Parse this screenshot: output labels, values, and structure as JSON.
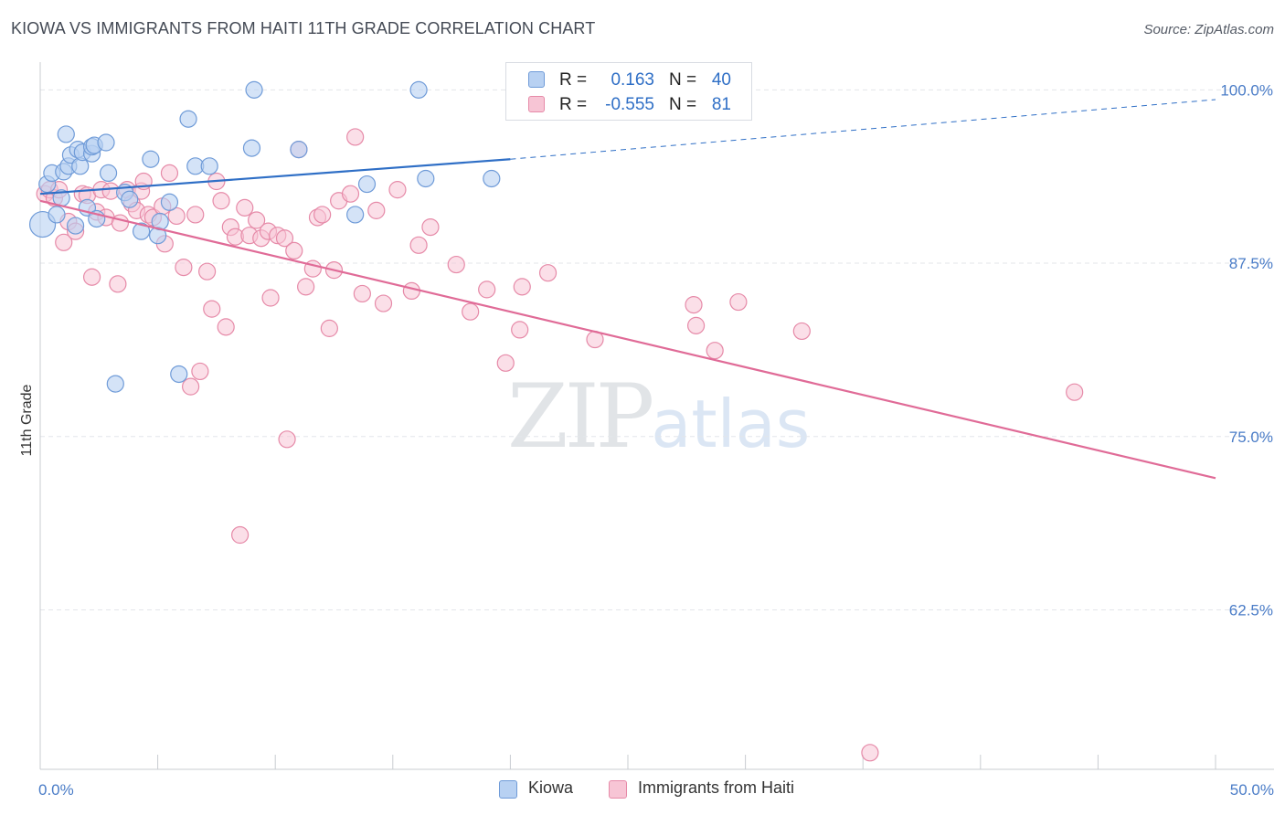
{
  "chart_data": {
    "type": "scatter",
    "title": "KIOWA VS IMMIGRANTS FROM HAITI 11TH GRADE CORRELATION CHART",
    "source": "Source: ZipAtlas.com",
    "ylabel": "11th Grade",
    "xlabel": "",
    "xlim": [
      0,
      50
    ],
    "ylim": [
      51,
      102
    ],
    "x_tick_labels": [
      "0.0%",
      "50.0%"
    ],
    "y_ticks": [
      {
        "value": 100,
        "label": "100.0%"
      },
      {
        "value": 87.5,
        "label": "87.5%"
      },
      {
        "value": 75,
        "label": "75.0%"
      },
      {
        "value": 62.5,
        "label": "62.5%"
      }
    ],
    "legend": [
      {
        "name": "Kiowa",
        "r_label": "R =",
        "r_value": "0.163",
        "n_label": "N =",
        "n_value": "40"
      },
      {
        "name": "Immigrants from Haiti",
        "r_label": "R =",
        "r_value": "-0.555",
        "n_label": "N =",
        "n_value": "81"
      }
    ],
    "colors": {
      "kiowa_fill": "#b8d1f2",
      "kiowa_stroke": "#6f9bd8",
      "kiowa_line": "#2f6fc6",
      "haiti_fill": "#f7c5d5",
      "haiti_stroke": "#e68aa8",
      "haiti_line": "#e06b97",
      "axis_text": "#4a7cc7",
      "grid": "#e3e6ea"
    },
    "series": [
      {
        "name": "Kiowa",
        "trend": {
          "x0": 0,
          "y0": 92.5,
          "x1": 20,
          "y1": 95,
          "x_ext_end": 50,
          "y_ext_end": 99.3
        },
        "points": [
          {
            "x": 0.1,
            "y": 90.3,
            "s": 14
          },
          {
            "x": 0.3,
            "y": 93.2,
            "s": 9
          },
          {
            "x": 0.5,
            "y": 94.0,
            "s": 9
          },
          {
            "x": 0.7,
            "y": 91.0,
            "s": 9
          },
          {
            "x": 0.9,
            "y": 92.2,
            "s": 9
          },
          {
            "x": 1.0,
            "y": 94.1,
            "s": 9
          },
          {
            "x": 1.1,
            "y": 96.8,
            "s": 9
          },
          {
            "x": 1.2,
            "y": 94.5,
            "s": 9
          },
          {
            "x": 1.3,
            "y": 95.3,
            "s": 9
          },
          {
            "x": 1.5,
            "y": 90.2,
            "s": 9
          },
          {
            "x": 1.6,
            "y": 95.7,
            "s": 9
          },
          {
            "x": 1.7,
            "y": 94.5,
            "s": 9
          },
          {
            "x": 1.8,
            "y": 95.5,
            "s": 9
          },
          {
            "x": 2.0,
            "y": 91.5,
            "s": 9
          },
          {
            "x": 2.2,
            "y": 95.4,
            "s": 9
          },
          {
            "x": 2.2,
            "y": 95.9,
            "s": 9
          },
          {
            "x": 2.3,
            "y": 96.0,
            "s": 9
          },
          {
            "x": 2.4,
            "y": 90.7,
            "s": 9
          },
          {
            "x": 2.8,
            "y": 96.2,
            "s": 9
          },
          {
            "x": 2.9,
            "y": 94.0,
            "s": 9
          },
          {
            "x": 3.2,
            "y": 78.8,
            "s": 9
          },
          {
            "x": 3.6,
            "y": 92.6,
            "s": 9
          },
          {
            "x": 3.8,
            "y": 92.1,
            "s": 9
          },
          {
            "x": 4.3,
            "y": 89.8,
            "s": 9
          },
          {
            "x": 4.7,
            "y": 95.0,
            "s": 9
          },
          {
            "x": 5.0,
            "y": 89.5,
            "s": 9
          },
          {
            "x": 5.1,
            "y": 90.5,
            "s": 9
          },
          {
            "x": 5.5,
            "y": 91.9,
            "s": 9
          },
          {
            "x": 5.9,
            "y": 79.5,
            "s": 9
          },
          {
            "x": 6.3,
            "y": 97.9,
            "s": 9
          },
          {
            "x": 6.6,
            "y": 94.5,
            "s": 9
          },
          {
            "x": 7.2,
            "y": 94.5,
            "s": 9
          },
          {
            "x": 9.0,
            "y": 95.8,
            "s": 9
          },
          {
            "x": 9.1,
            "y": 100.0,
            "s": 9
          },
          {
            "x": 11.0,
            "y": 95.7,
            "s": 9
          },
          {
            "x": 13.4,
            "y": 91.0,
            "s": 9
          },
          {
            "x": 13.9,
            "y": 93.2,
            "s": 9
          },
          {
            "x": 16.1,
            "y": 100.0,
            "s": 9
          },
          {
            "x": 16.4,
            "y": 93.6,
            "s": 9
          },
          {
            "x": 19.2,
            "y": 93.6,
            "s": 9
          }
        ]
      },
      {
        "name": "Immigrants from Haiti",
        "trend": {
          "x0": 0,
          "y0": 92.0,
          "x1": 50,
          "y1": 72.0
        },
        "points": [
          {
            "x": 0.2,
            "y": 92.5,
            "s": 9
          },
          {
            "x": 0.4,
            "y": 92.8,
            "s": 9
          },
          {
            "x": 0.6,
            "y": 92.2,
            "s": 9
          },
          {
            "x": 0.8,
            "y": 92.8,
            "s": 9
          },
          {
            "x": 1.0,
            "y": 89.0,
            "s": 9
          },
          {
            "x": 1.2,
            "y": 90.5,
            "s": 9
          },
          {
            "x": 1.5,
            "y": 89.8,
            "s": 9
          },
          {
            "x": 1.8,
            "y": 92.5,
            "s": 9
          },
          {
            "x": 2.0,
            "y": 92.4,
            "s": 9
          },
          {
            "x": 2.2,
            "y": 86.5,
            "s": 9
          },
          {
            "x": 2.4,
            "y": 91.2,
            "s": 9
          },
          {
            "x": 2.6,
            "y": 92.8,
            "s": 9
          },
          {
            "x": 2.8,
            "y": 90.8,
            "s": 9
          },
          {
            "x": 3.0,
            "y": 92.7,
            "s": 9
          },
          {
            "x": 3.3,
            "y": 86.0,
            "s": 9
          },
          {
            "x": 3.4,
            "y": 90.4,
            "s": 9
          },
          {
            "x": 3.7,
            "y": 92.8,
            "s": 9
          },
          {
            "x": 3.9,
            "y": 91.8,
            "s": 9
          },
          {
            "x": 4.1,
            "y": 91.3,
            "s": 9
          },
          {
            "x": 4.3,
            "y": 92.7,
            "s": 9
          },
          {
            "x": 4.4,
            "y": 93.4,
            "s": 9
          },
          {
            "x": 4.6,
            "y": 91.0,
            "s": 9
          },
          {
            "x": 4.8,
            "y": 90.8,
            "s": 9
          },
          {
            "x": 5.2,
            "y": 91.6,
            "s": 9
          },
          {
            "x": 5.3,
            "y": 88.9,
            "s": 9
          },
          {
            "x": 5.5,
            "y": 94.0,
            "s": 9
          },
          {
            "x": 5.8,
            "y": 90.9,
            "s": 9
          },
          {
            "x": 6.1,
            "y": 87.2,
            "s": 9
          },
          {
            "x": 6.4,
            "y": 78.6,
            "s": 9
          },
          {
            "x": 6.6,
            "y": 91.0,
            "s": 9
          },
          {
            "x": 6.8,
            "y": 79.7,
            "s": 9
          },
          {
            "x": 7.1,
            "y": 86.9,
            "s": 9
          },
          {
            "x": 7.3,
            "y": 84.2,
            "s": 9
          },
          {
            "x": 7.5,
            "y": 93.4,
            "s": 9
          },
          {
            "x": 7.7,
            "y": 92.0,
            "s": 9
          },
          {
            "x": 7.9,
            "y": 82.9,
            "s": 9
          },
          {
            "x": 8.1,
            "y": 90.1,
            "s": 9
          },
          {
            "x": 8.3,
            "y": 89.4,
            "s": 9
          },
          {
            "x": 8.5,
            "y": 67.9,
            "s": 9
          },
          {
            "x": 8.7,
            "y": 91.5,
            "s": 9
          },
          {
            "x": 8.9,
            "y": 89.5,
            "s": 9
          },
          {
            "x": 9.2,
            "y": 90.6,
            "s": 9
          },
          {
            "x": 9.4,
            "y": 89.3,
            "s": 9
          },
          {
            "x": 9.7,
            "y": 89.8,
            "s": 9
          },
          {
            "x": 9.8,
            "y": 85.0,
            "s": 9
          },
          {
            "x": 10.1,
            "y": 89.5,
            "s": 9
          },
          {
            "x": 10.4,
            "y": 89.3,
            "s": 9
          },
          {
            "x": 10.5,
            "y": 74.8,
            "s": 9
          },
          {
            "x": 10.8,
            "y": 88.4,
            "s": 9
          },
          {
            "x": 11.0,
            "y": 95.7,
            "s": 9
          },
          {
            "x": 11.3,
            "y": 85.8,
            "s": 9
          },
          {
            "x": 11.6,
            "y": 87.1,
            "s": 9
          },
          {
            "x": 11.8,
            "y": 90.8,
            "s": 9
          },
          {
            "x": 12.0,
            "y": 91.0,
            "s": 9
          },
          {
            "x": 12.3,
            "y": 82.8,
            "s": 9
          },
          {
            "x": 12.5,
            "y": 87.0,
            "s": 9
          },
          {
            "x": 12.7,
            "y": 92.0,
            "s": 9
          },
          {
            "x": 13.2,
            "y": 92.5,
            "s": 9
          },
          {
            "x": 13.4,
            "y": 96.6,
            "s": 9
          },
          {
            "x": 13.7,
            "y": 85.3,
            "s": 9
          },
          {
            "x": 14.3,
            "y": 91.3,
            "s": 9
          },
          {
            "x": 14.6,
            "y": 84.6,
            "s": 9
          },
          {
            "x": 15.2,
            "y": 92.8,
            "s": 9
          },
          {
            "x": 15.8,
            "y": 85.5,
            "s": 9
          },
          {
            "x": 16.1,
            "y": 88.8,
            "s": 9
          },
          {
            "x": 16.6,
            "y": 90.1,
            "s": 9
          },
          {
            "x": 17.7,
            "y": 87.4,
            "s": 9
          },
          {
            "x": 18.3,
            "y": 84.0,
            "s": 9
          },
          {
            "x": 19.0,
            "y": 85.6,
            "s": 9
          },
          {
            "x": 19.8,
            "y": 80.3,
            "s": 9
          },
          {
            "x": 20.4,
            "y": 82.7,
            "s": 9
          },
          {
            "x": 20.5,
            "y": 85.8,
            "s": 9
          },
          {
            "x": 21.6,
            "y": 86.8,
            "s": 9
          },
          {
            "x": 23.6,
            "y": 82.0,
            "s": 9
          },
          {
            "x": 27.8,
            "y": 84.5,
            "s": 9
          },
          {
            "x": 27.9,
            "y": 83.0,
            "s": 9
          },
          {
            "x": 28.7,
            "y": 81.2,
            "s": 9
          },
          {
            "x": 29.7,
            "y": 84.7,
            "s": 9
          },
          {
            "x": 32.4,
            "y": 82.6,
            "s": 9
          },
          {
            "x": 44.0,
            "y": 78.2,
            "s": 9
          },
          {
            "x": 35.3,
            "y": 52.2,
            "s": 9
          }
        ]
      }
    ]
  }
}
